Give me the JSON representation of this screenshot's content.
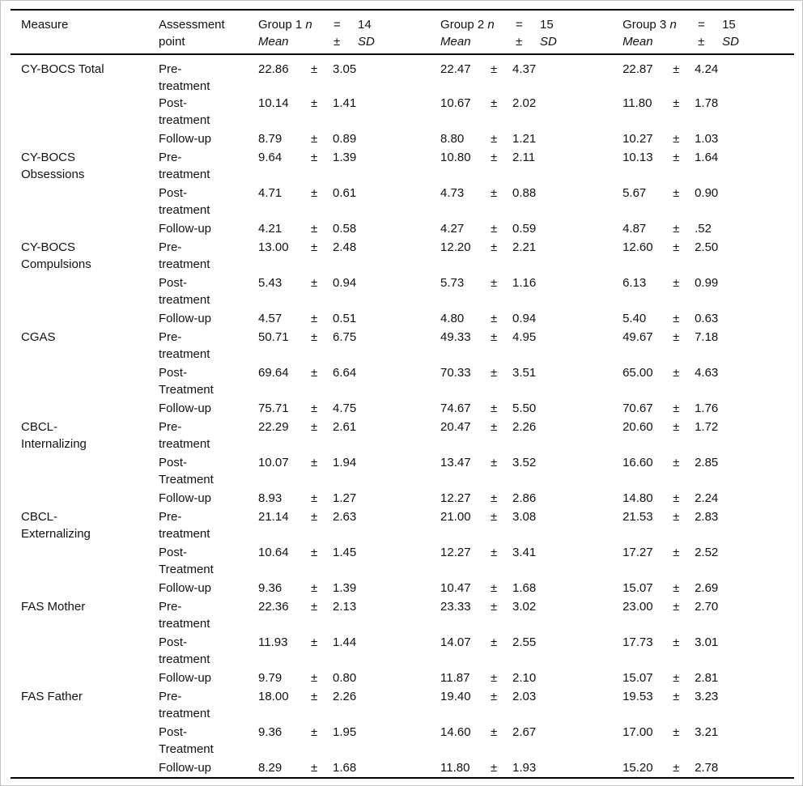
{
  "header": {
    "measure": "Measure",
    "assessment": [
      "Assessment",
      "point"
    ],
    "groups": [
      {
        "title": "Group 1",
        "n_symbol": "n",
        "eq": "=",
        "n_value": "14",
        "mean": "Mean",
        "pm": "±",
        "sd": "SD"
      },
      {
        "title": "Group 2",
        "n_symbol": "n",
        "eq": "=",
        "n_value": "15",
        "mean": "Mean",
        "pm": "±",
        "sd": "SD"
      },
      {
        "title": "Group 3",
        "n_symbol": "n",
        "eq": "=",
        "n_value": "15",
        "mean": "Mean",
        "pm": "±",
        "sd": "SD"
      }
    ]
  },
  "measures": [
    {
      "name": [
        "CY-BOCS Total"
      ],
      "rows": [
        {
          "assessment": [
            "Pre-",
            "treatment"
          ],
          "values": [
            [
              "22.86",
              "±",
              "3.05"
            ],
            [
              "22.47",
              "±",
              "4.37"
            ],
            [
              "22.87",
              "±",
              "4.24"
            ]
          ]
        },
        {
          "assessment": [
            "Post-",
            "treatment"
          ],
          "values": [
            [
              "10.14",
              "±",
              "1.41"
            ],
            [
              "10.67",
              "±",
              "2.02"
            ],
            [
              "11.80",
              "±",
              "1.78"
            ]
          ]
        },
        {
          "assessment": [
            "Follow-up"
          ],
          "values": [
            [
              "8.79",
              "±",
              "0.89"
            ],
            [
              "8.80",
              "±",
              "1.21"
            ],
            [
              "10.27",
              "±",
              "1.03"
            ]
          ]
        }
      ]
    },
    {
      "name": [
        "CY-BOCS",
        "Obsessions"
      ],
      "rows": [
        {
          "assessment": [
            "Pre-",
            "treatment"
          ],
          "values": [
            [
              "9.64",
              "±",
              "1.39"
            ],
            [
              "10.80",
              "±",
              "2.11"
            ],
            [
              "10.13",
              "±",
              "1.64"
            ]
          ]
        },
        {
          "assessment": [
            "Post-",
            "treatment"
          ],
          "values": [
            [
              "4.71",
              "±",
              "0.61"
            ],
            [
              "4.73",
              "±",
              "0.88"
            ],
            [
              "5.67",
              "±",
              "0.90"
            ]
          ]
        },
        {
          "assessment": [
            "Follow-up"
          ],
          "values": [
            [
              "4.21",
              "±",
              "0.58"
            ],
            [
              "4.27",
              "±",
              "0.59"
            ],
            [
              "4.87",
              "±",
              ".52"
            ]
          ]
        }
      ]
    },
    {
      "name": [
        "CY-BOCS",
        "Compulsions"
      ],
      "rows": [
        {
          "assessment": [
            "Pre-",
            "treatment"
          ],
          "values": [
            [
              "13.00",
              "±",
              "2.48"
            ],
            [
              "12.20",
              "±",
              "2.21"
            ],
            [
              "12.60",
              "±",
              "2.50"
            ]
          ]
        },
        {
          "assessment": [
            "Post-",
            "treatment"
          ],
          "values": [
            [
              "5.43",
              "±",
              "0.94"
            ],
            [
              "5.73",
              "±",
              "1.16"
            ],
            [
              "6.13",
              "±",
              "0.99"
            ]
          ]
        },
        {
          "assessment": [
            "Follow-up"
          ],
          "values": [
            [
              "4.57",
              "±",
              "0.51"
            ],
            [
              "4.80",
              "±",
              "0.94"
            ],
            [
              "5.40",
              "±",
              "0.63"
            ]
          ]
        }
      ]
    },
    {
      "name": [
        "CGAS"
      ],
      "rows": [
        {
          "assessment": [
            "Pre-",
            "treatment"
          ],
          "values": [
            [
              "50.71",
              "±",
              "6.75"
            ],
            [
              "49.33",
              "±",
              "4.95"
            ],
            [
              "49.67",
              "±",
              "7.18"
            ]
          ]
        },
        {
          "assessment": [
            "Post-",
            "Treatment"
          ],
          "values": [
            [
              "69.64",
              "±",
              "6.64"
            ],
            [
              "70.33",
              "±",
              "3.51"
            ],
            [
              "65.00",
              "±",
              "4.63"
            ]
          ]
        },
        {
          "assessment": [
            "Follow-up"
          ],
          "values": [
            [
              "75.71",
              "±",
              "4.75"
            ],
            [
              "74.67",
              "±",
              "5.50"
            ],
            [
              "70.67",
              "±",
              "1.76"
            ]
          ]
        }
      ]
    },
    {
      "name": [
        "CBCL-",
        "Internalizing"
      ],
      "rows": [
        {
          "assessment": [
            "Pre-",
            "treatment"
          ],
          "values": [
            [
              "22.29",
              "±",
              "2.61"
            ],
            [
              "20.47",
              "±",
              "2.26"
            ],
            [
              "20.60",
              "±",
              "1.72"
            ]
          ]
        },
        {
          "assessment": [
            "Post-",
            "Treatment"
          ],
          "values": [
            [
              "10.07",
              "±",
              "1.94"
            ],
            [
              "13.47",
              "±",
              "3.52"
            ],
            [
              "16.60",
              "±",
              "2.85"
            ]
          ]
        },
        {
          "assessment": [
            "Follow-up"
          ],
          "values": [
            [
              "8.93",
              "±",
              "1.27"
            ],
            [
              "12.27",
              "±",
              "2.86"
            ],
            [
              "14.80",
              "±",
              "2.24"
            ]
          ]
        }
      ]
    },
    {
      "name": [
        "CBCL-",
        "Externalizing"
      ],
      "rows": [
        {
          "assessment": [
            "Pre-",
            "treatment"
          ],
          "values": [
            [
              "21.14",
              "±",
              "2.63"
            ],
            [
              "21.00",
              "±",
              "3.08"
            ],
            [
              "21.53",
              "±",
              "2.83"
            ]
          ]
        },
        {
          "assessment": [
            "Post-",
            "Treatment"
          ],
          "values": [
            [
              "10.64",
              "±",
              "1.45"
            ],
            [
              "12.27",
              "±",
              "3.41"
            ],
            [
              "17.27",
              "±",
              "2.52"
            ]
          ]
        },
        {
          "assessment": [
            "Follow-up"
          ],
          "values": [
            [
              "9.36",
              "±",
              "1.39"
            ],
            [
              "10.47",
              "±",
              "1.68"
            ],
            [
              "15.07",
              "±",
              "2.69"
            ]
          ]
        }
      ]
    },
    {
      "name": [
        "FAS Mother"
      ],
      "rows": [
        {
          "assessment": [
            "Pre-",
            "treatment"
          ],
          "values": [
            [
              "22.36",
              "±",
              "2.13"
            ],
            [
              "23.33",
              "±",
              "3.02"
            ],
            [
              "23.00",
              "±",
              "2.70"
            ]
          ]
        },
        {
          "assessment": [
            "Post-",
            "treatment"
          ],
          "values": [
            [
              "11.93",
              "±",
              "1.44"
            ],
            [
              "14.07",
              "±",
              "2.55"
            ],
            [
              "17.73",
              "±",
              "3.01"
            ]
          ]
        },
        {
          "assessment": [
            "Follow-up"
          ],
          "values": [
            [
              "9.79",
              "±",
              "0.80"
            ],
            [
              "11.87",
              "±",
              "2.10"
            ],
            [
              "15.07",
              "±",
              "2.81"
            ]
          ]
        }
      ]
    },
    {
      "name": [
        "FAS Father"
      ],
      "rows": [
        {
          "assessment": [
            "Pre-",
            "treatment"
          ],
          "values": [
            [
              "18.00",
              "±",
              "2.26"
            ],
            [
              "19.40",
              "±",
              "2.03"
            ],
            [
              "19.53",
              "±",
              "3.23"
            ]
          ]
        },
        {
          "assessment": [
            "Post-",
            "Treatment"
          ],
          "values": [
            [
              "9.36",
              "±",
              "1.95"
            ],
            [
              "14.60",
              "±",
              "2.67"
            ],
            [
              "17.00",
              "±",
              "3.21"
            ]
          ]
        },
        {
          "assessment": [
            "Follow-up"
          ],
          "values": [
            [
              "8.29",
              "±",
              "1.68"
            ],
            [
              "11.80",
              "±",
              "1.93"
            ],
            [
              "15.20",
              "±",
              "2.78"
            ]
          ]
        }
      ]
    }
  ]
}
